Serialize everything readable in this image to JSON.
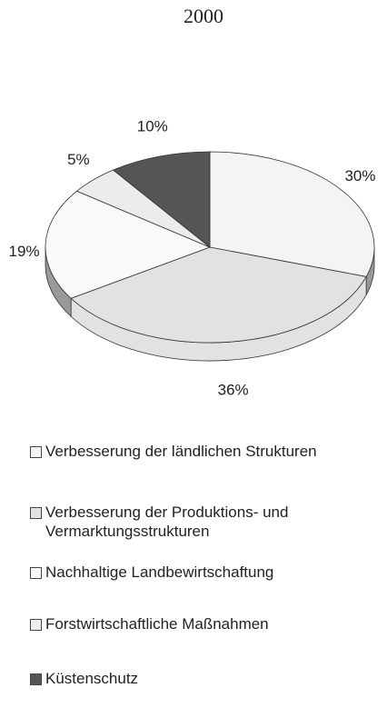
{
  "chart_data": {
    "type": "pie",
    "title": "2000",
    "categories": [
      "Verbesserung der ländlichen Strukturen",
      "Verbesserung der Produktions- und Vermarktungsstrukturen",
      "Nachhaltige Landbewirtschaftung",
      "Forstwirtschaftliche Maßnahmen",
      "Küstenschutz"
    ],
    "values": [
      30,
      36,
      19,
      5,
      10
    ],
    "value_labels": [
      "30%",
      "36%",
      "19%",
      "5%",
      "10%"
    ],
    "colors": [
      "#f4f4f4",
      "#e2e2e2",
      "#f9f9f9",
      "#ececec",
      "#555555"
    ]
  }
}
